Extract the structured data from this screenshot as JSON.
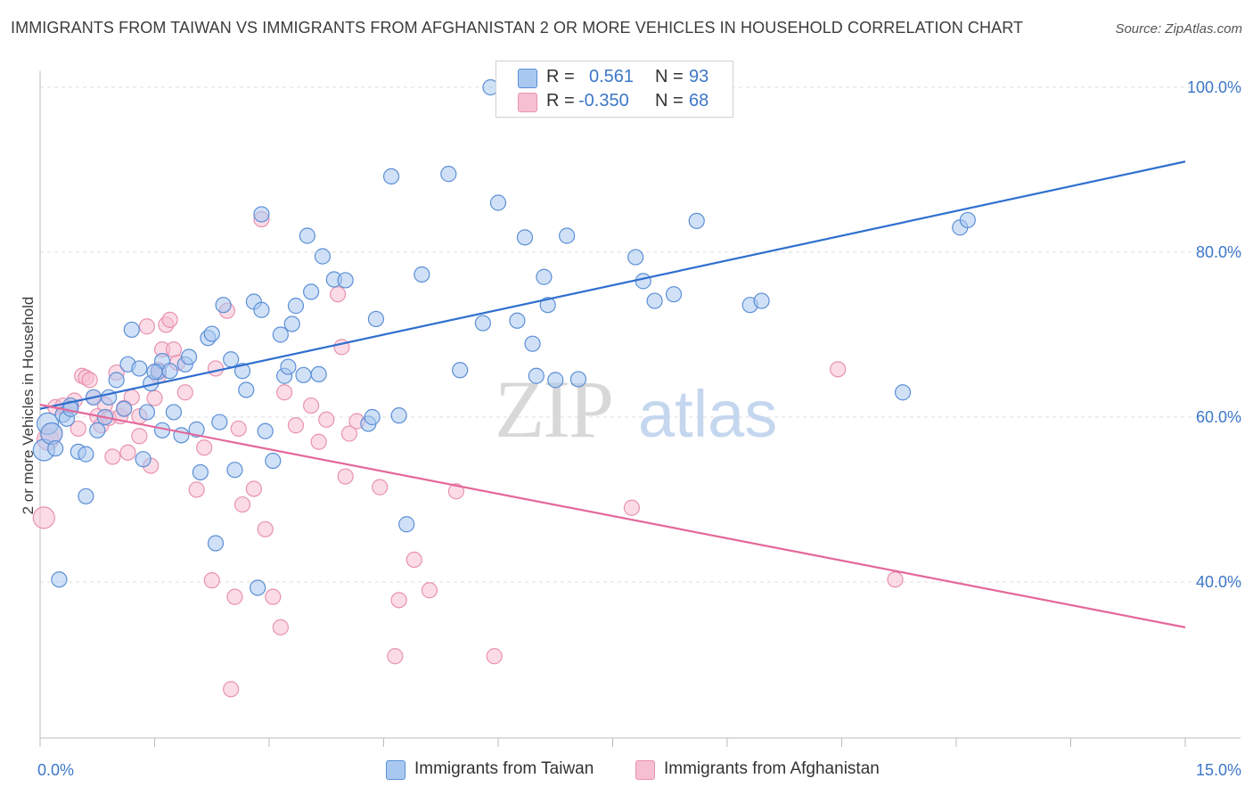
{
  "title": "IMMIGRANTS FROM TAIWAN VS IMMIGRANTS FROM AFGHANISTAN 2 OR MORE VEHICLES IN HOUSEHOLD CORRELATION CHART",
  "source": "Source: ZipAtlas.com",
  "legend": {
    "rows": [
      {
        "r_label": "R =",
        "r_value": "0.561",
        "n_label": "N =",
        "n_value": "93"
      },
      {
        "r_label": "R =",
        "r_value": "-0.350",
        "n_label": "N =",
        "n_value": "68"
      }
    ]
  },
  "bottom_legend": [
    "Immigrants from Taiwan",
    "Immigrants from Afghanistan"
  ],
  "watermark": {
    "zip": "ZIP",
    "atlas": "atlas"
  },
  "colors": {
    "blue_fill": "#a9c8f0",
    "blue_stroke": "#5b8fd6",
    "blue_line": "#2f6fcf",
    "pink_fill": "#f7bfd2",
    "pink_stroke": "#e892b0",
    "pink_line": "#e4689a",
    "tick_text": "#3d77c9",
    "grid": "#dddddd"
  },
  "chart_data": {
    "type": "scatter",
    "title": "IMMIGRANTS FROM TAIWAN VS IMMIGRANTS FROM AFGHANISTAN 2 OR MORE VEHICLES IN HOUSEHOLD CORRELATION CHART",
    "xlabel": "",
    "ylabel": "2 or more Vehicles in Household",
    "xlim": [
      0,
      15
    ],
    "ylim": [
      20,
      102
    ],
    "x_tick_labels": [
      "0.0%",
      "15.0%"
    ],
    "y_ticks": [
      40,
      60,
      80,
      100
    ],
    "y_tick_labels": [
      "40.0%",
      "60.0%",
      "80.0%",
      "100.0%"
    ],
    "grid": true,
    "legend_position": "top-center",
    "series": [
      {
        "name": "Immigrants from Taiwan",
        "R": 0.561,
        "N": 93,
        "trend": {
          "x": [
            0,
            15
          ],
          "y": [
            61.0,
            91.0
          ]
        },
        "points": [
          [
            0.05,
            56.0
          ],
          [
            0.1,
            59.2
          ],
          [
            0.15,
            58.0
          ],
          [
            0.2,
            56.2
          ],
          [
            0.25,
            40.3
          ],
          [
            0.3,
            60.3
          ],
          [
            0.35,
            59.8
          ],
          [
            0.4,
            61.4
          ],
          [
            0.5,
            55.8
          ],
          [
            0.6,
            50.4
          ],
          [
            0.6,
            55.5
          ],
          [
            0.7,
            62.4
          ],
          [
            0.75,
            58.4
          ],
          [
            0.85,
            60.0
          ],
          [
            0.9,
            62.4
          ],
          [
            1.0,
            64.5
          ],
          [
            1.1,
            61.0
          ],
          [
            1.15,
            66.4
          ],
          [
            1.2,
            70.6
          ],
          [
            1.3,
            65.9
          ],
          [
            1.35,
            54.9
          ],
          [
            1.4,
            60.6
          ],
          [
            1.45,
            64.1
          ],
          [
            1.55,
            65.5
          ],
          [
            1.6,
            66.8
          ],
          [
            1.6,
            58.4
          ],
          [
            1.7,
            65.6
          ],
          [
            1.75,
            60.6
          ],
          [
            1.85,
            57.8
          ],
          [
            1.9,
            66.4
          ],
          [
            1.95,
            67.3
          ],
          [
            2.05,
            58.5
          ],
          [
            2.1,
            53.3
          ],
          [
            2.2,
            69.6
          ],
          [
            2.25,
            70.1
          ],
          [
            2.3,
            44.7
          ],
          [
            2.35,
            59.4
          ],
          [
            2.4,
            73.6
          ],
          [
            2.5,
            67.0
          ],
          [
            2.55,
            53.6
          ],
          [
            2.65,
            65.6
          ],
          [
            2.7,
            63.3
          ],
          [
            2.8,
            74.0
          ],
          [
            2.85,
            39.3
          ],
          [
            2.9,
            84.6
          ],
          [
            2.9,
            73.0
          ],
          [
            3.05,
            54.7
          ],
          [
            3.15,
            70.0
          ],
          [
            3.2,
            65.0
          ],
          [
            3.25,
            66.1
          ],
          [
            3.3,
            71.3
          ],
          [
            3.35,
            73.5
          ],
          [
            3.45,
            65.1
          ],
          [
            3.5,
            82.0
          ],
          [
            3.55,
            75.2
          ],
          [
            3.65,
            65.2
          ],
          [
            3.7,
            79.5
          ],
          [
            3.85,
            76.7
          ],
          [
            4.0,
            76.6
          ],
          [
            4.3,
            59.2
          ],
          [
            4.35,
            60.0
          ],
          [
            4.4,
            71.9
          ],
          [
            4.6,
            89.2
          ],
          [
            4.7,
            60.2
          ],
          [
            4.8,
            47.0
          ],
          [
            5.0,
            77.3
          ],
          [
            5.35,
            89.5
          ],
          [
            5.5,
            65.7
          ],
          [
            5.8,
            71.4
          ],
          [
            5.9,
            100.0
          ],
          [
            6.0,
            86.0
          ],
          [
            6.25,
            71.7
          ],
          [
            6.35,
            81.8
          ],
          [
            6.45,
            68.9
          ],
          [
            6.5,
            65.0
          ],
          [
            6.6,
            77.0
          ],
          [
            6.65,
            73.6
          ],
          [
            6.75,
            64.5
          ],
          [
            6.9,
            82.0
          ],
          [
            7.05,
            64.6
          ],
          [
            7.8,
            79.4
          ],
          [
            7.9,
            76.5
          ],
          [
            8.05,
            74.1
          ],
          [
            8.3,
            74.9
          ],
          [
            8.6,
            83.8
          ],
          [
            9.3,
            73.6
          ],
          [
            9.45,
            74.1
          ],
          [
            11.3,
            63.0
          ],
          [
            12.05,
            83.0
          ],
          [
            12.15,
            83.9
          ],
          [
            0.4,
            61.0
          ],
          [
            1.5,
            65.5
          ],
          [
            2.95,
            58.3
          ]
        ]
      },
      {
        "name": "Immigrants from Afghanistan",
        "R": -0.35,
        "N": 68,
        "trend": {
          "x": [
            0,
            15
          ],
          "y": [
            61.5,
            34.5
          ]
        },
        "points": [
          [
            0.05,
            47.8
          ],
          [
            0.1,
            57.3
          ],
          [
            0.15,
            58.0
          ],
          [
            0.2,
            61.2
          ],
          [
            0.3,
            61.4
          ],
          [
            0.45,
            62.0
          ],
          [
            0.5,
            58.6
          ],
          [
            0.55,
            65.0
          ],
          [
            0.6,
            64.8
          ],
          [
            0.65,
            64.5
          ],
          [
            0.7,
            62.4
          ],
          [
            0.75,
            60.1
          ],
          [
            0.8,
            59.0
          ],
          [
            0.85,
            61.5
          ],
          [
            0.9,
            59.9
          ],
          [
            0.95,
            55.2
          ],
          [
            1.0,
            65.4
          ],
          [
            1.05,
            60.1
          ],
          [
            1.1,
            61.1
          ],
          [
            1.15,
            55.7
          ],
          [
            1.2,
            62.4
          ],
          [
            1.3,
            60.1
          ],
          [
            1.4,
            71.0
          ],
          [
            1.45,
            54.1
          ],
          [
            1.5,
            62.3
          ],
          [
            1.55,
            65.7
          ],
          [
            1.6,
            68.2
          ],
          [
            1.65,
            71.2
          ],
          [
            1.7,
            71.8
          ],
          [
            1.75,
            68.2
          ],
          [
            1.8,
            66.6
          ],
          [
            1.9,
            63.0
          ],
          [
            2.05,
            51.2
          ],
          [
            2.15,
            56.3
          ],
          [
            2.25,
            40.2
          ],
          [
            2.3,
            65.9
          ],
          [
            2.45,
            72.9
          ],
          [
            2.55,
            38.2
          ],
          [
            2.6,
            58.6
          ],
          [
            2.65,
            49.4
          ],
          [
            2.8,
            51.3
          ],
          [
            2.95,
            46.4
          ],
          [
            2.9,
            84.0
          ],
          [
            3.05,
            38.2
          ],
          [
            3.15,
            34.5
          ],
          [
            3.2,
            63.0
          ],
          [
            3.35,
            59.0
          ],
          [
            3.55,
            61.4
          ],
          [
            3.65,
            57.0
          ],
          [
            3.75,
            59.7
          ],
          [
            3.9,
            74.9
          ],
          [
            3.95,
            68.5
          ],
          [
            4.0,
            52.8
          ],
          [
            4.05,
            58.0
          ],
          [
            4.15,
            59.5
          ],
          [
            4.45,
            51.5
          ],
          [
            4.65,
            31.0
          ],
          [
            4.7,
            37.8
          ],
          [
            4.9,
            42.7
          ],
          [
            5.1,
            39.0
          ],
          [
            5.45,
            51.0
          ],
          [
            5.95,
            31.0
          ],
          [
            7.75,
            49.0
          ],
          [
            10.45,
            65.8
          ],
          [
            11.2,
            40.3
          ],
          [
            2.5,
            27.0
          ],
          [
            1.55,
            65.0
          ],
          [
            1.3,
            57.7
          ]
        ]
      }
    ]
  }
}
